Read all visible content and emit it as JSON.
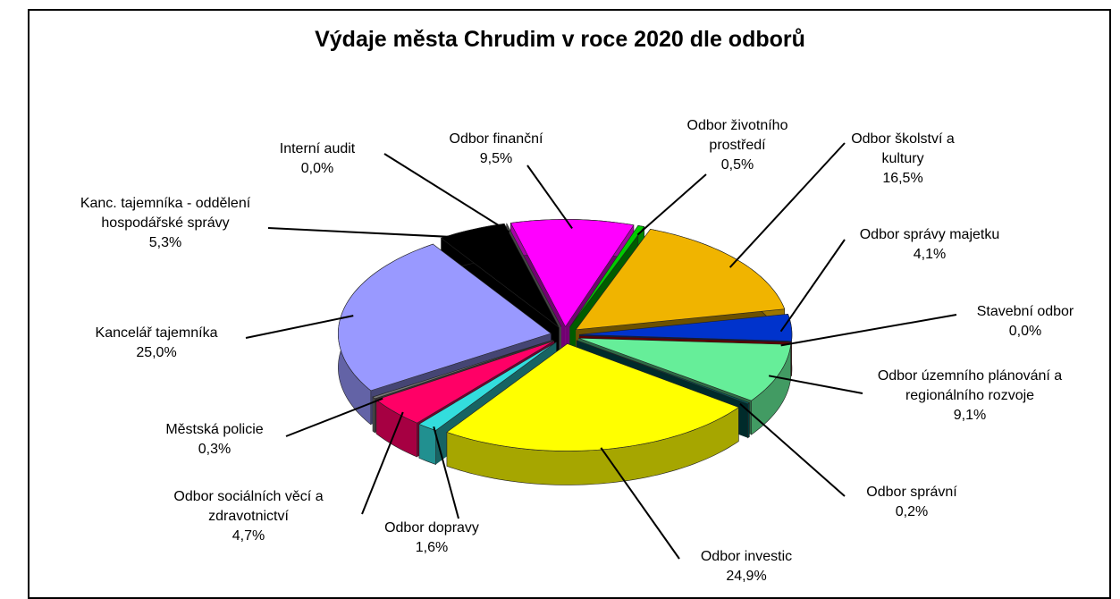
{
  "chart_data": {
    "type": "pie",
    "title": "Výdaje města Chrudim v roce 2020 dle odborů",
    "categories": [
      "Odbor finanční",
      "Odbor životního prostředí",
      "Odbor školství a kultury",
      "Odbor správy majetku",
      "Stavební odbor",
      "Odbor územního plánování a regionálního rozvoje",
      "Odbor správní",
      "Odbor investic",
      "Odbor dopravy",
      "Odbor sociálních věcí a zdravotnictví",
      "Městská policie",
      "Kancelář tajemníka",
      "Kanc. tajemníka - oddělení hospodářské správy",
      "Interní audit"
    ],
    "values": [
      9.5,
      0.5,
      16.5,
      4.1,
      0.0,
      9.1,
      0.2,
      24.9,
      1.6,
      4.7,
      0.3,
      25.0,
      5.3,
      0.0
    ],
    "value_labels": [
      "9,5%",
      "0,5%",
      "16,5%",
      "4,1%",
      "0,0%",
      "9,1%",
      "0,2%",
      "24,9%",
      "1,6%",
      "4,7%",
      "0,3%",
      "25,0%",
      "5,3%",
      "0,0%"
    ],
    "colors": [
      "#ff00ff",
      "#00cc00",
      "#f0b400",
      "#0033cc",
      "#cc0000",
      "#66ee99",
      "#006060",
      "#ffff00",
      "#33dddd",
      "#ff0066",
      "#777777",
      "#9999ff",
      "#000000",
      "#999999"
    ]
  }
}
